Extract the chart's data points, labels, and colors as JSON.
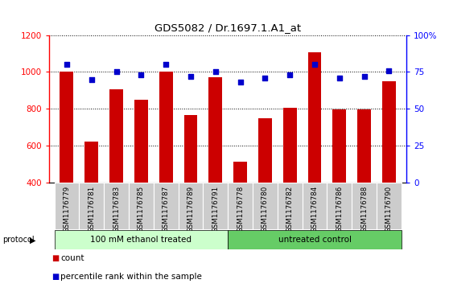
{
  "title": "GDS5082 / Dr.1697.1.A1_at",
  "samples": [
    "GSM1176779",
    "GSM1176781",
    "GSM1176783",
    "GSM1176785",
    "GSM1176787",
    "GSM1176789",
    "GSM1176791",
    "GSM1176778",
    "GSM1176780",
    "GSM1176782",
    "GSM1176784",
    "GSM1176786",
    "GSM1176788",
    "GSM1176790"
  ],
  "counts": [
    1000,
    620,
    905,
    850,
    1000,
    765,
    970,
    515,
    748,
    805,
    1108,
    798,
    798,
    950
  ],
  "percentiles": [
    80,
    70,
    75,
    73,
    80,
    72,
    75,
    68,
    71,
    73,
    80,
    71,
    72,
    76
  ],
  "group1_label": "100 mM ethanol treated",
  "group2_label": "untreated control",
  "group1_count": 7,
  "group2_count": 7,
  "ylim_left": [
    400,
    1200
  ],
  "ylim_right": [
    0,
    100
  ],
  "yticks_left": [
    400,
    600,
    800,
    1000,
    1200
  ],
  "yticks_right": [
    0,
    25,
    50,
    75,
    100
  ],
  "ytick_labels_right": [
    "0",
    "25",
    "50",
    "75",
    "100%"
  ],
  "bar_color": "#cc0000",
  "dot_color": "#0000cc",
  "group1_bg": "#ccffcc",
  "group2_bg": "#66cc66",
  "tick_bg": "#cccccc",
  "legend_count_color": "#cc0000",
  "legend_pct_color": "#0000cc",
  "bg_white": "#ffffff"
}
